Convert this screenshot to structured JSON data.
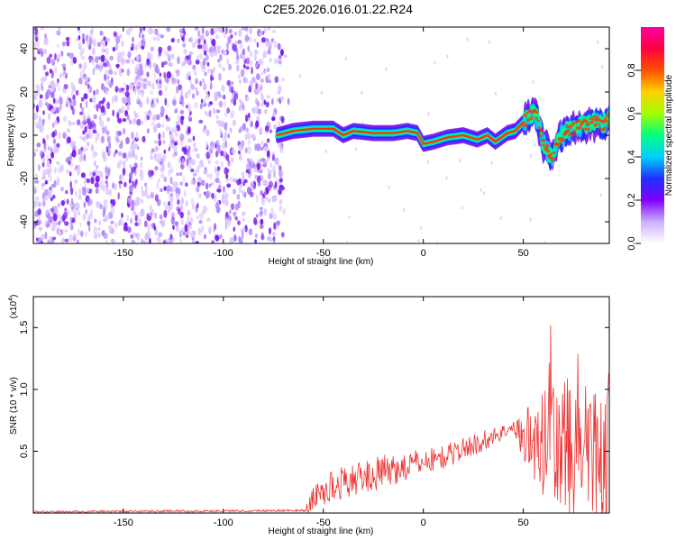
{
  "title": "C2E5.2026.016.01.22.R24",
  "chart_data": [
    {
      "type": "heatmap",
      "name": "spectrogram",
      "xlabel": "Height of straight line (km)",
      "ylabel": "Frequency (Hz)",
      "xlim": [
        -195,
        93
      ],
      "ylim": [
        -50,
        50
      ],
      "xticks": [
        -150,
        -100,
        -50,
        0,
        50
      ],
      "yticks": [
        -40,
        -20,
        0,
        20,
        40
      ],
      "noise_region_x": [
        -195,
        -70
      ],
      "signal_ridge": {
        "x": [
          -73,
          -65,
          -55,
          -45,
          -40,
          -35,
          -25,
          -15,
          -8,
          -3,
          0,
          5,
          12,
          20,
          27,
          32,
          36,
          42,
          46,
          50,
          54,
          57,
          60,
          64,
          68,
          72,
          78,
          84,
          90,
          93
        ],
        "y": [
          0,
          2,
          3,
          3,
          0,
          2,
          1,
          1,
          2,
          1,
          -4,
          -3,
          -1,
          0,
          -2,
          0,
          -3,
          1,
          2,
          6,
          10,
          8,
          -4,
          -10,
          -1,
          2,
          4,
          6,
          5,
          8
        ]
      },
      "colorbar": {
        "label": "Normalized spectral amplitude",
        "range": [
          0.0,
          1.0
        ],
        "ticks": [
          0.0,
          0.2,
          0.4,
          0.6,
          0.8
        ],
        "tick_labels": [
          "0.0",
          "0.2",
          "0.4",
          "0.6",
          "0.8"
        ],
        "colors": [
          "#ffffff",
          "#ccb0ff",
          "#8000ff",
          "#2030ff",
          "#00d0ff",
          "#00ff80",
          "#a0ff00",
          "#ffd000",
          "#ff5000",
          "#ff0040",
          "#ff00a0"
        ]
      }
    },
    {
      "type": "line",
      "name": "snr",
      "xlabel": "Height of straight line (km)",
      "ylabel": "SNR (10 * v/v)",
      "multiplier_label": "(x10",
      "multiplier_exp": "4",
      "multiplier_close": ")",
      "xlim": [
        -195,
        93
      ],
      "ylim": [
        0,
        1.75
      ],
      "xticks": [
        -150,
        -100,
        -50,
        0,
        50
      ],
      "yticks": [
        0.5,
        1.0,
        1.5
      ],
      "ytick_labels": [
        "0.5",
        "1.0",
        "1.5"
      ],
      "color": "#ee3333",
      "envelope": {
        "x": [
          -195,
          -60,
          -57,
          -55,
          -50,
          -40,
          -30,
          -20,
          -10,
          0,
          10,
          20,
          30,
          40,
          45,
          50,
          55,
          60,
          65,
          70,
          75,
          80,
          85,
          90,
          93
        ],
        "base": [
          0.01,
          0.02,
          0.06,
          0.12,
          0.18,
          0.25,
          0.29,
          0.33,
          0.37,
          0.42,
          0.45,
          0.52,
          0.58,
          0.66,
          0.69,
          0.62,
          0.55,
          0.52,
          0.55,
          0.5,
          0.45,
          0.5,
          0.48,
          0.5,
          0.52
        ],
        "amp": [
          0.008,
          0.01,
          0.06,
          0.1,
          0.14,
          0.13,
          0.13,
          0.14,
          0.12,
          0.1,
          0.1,
          0.09,
          0.09,
          0.06,
          0.05,
          0.25,
          0.32,
          0.45,
          0.55,
          0.6,
          0.8,
          0.6,
          0.55,
          0.6,
          0.65
        ]
      }
    }
  ]
}
